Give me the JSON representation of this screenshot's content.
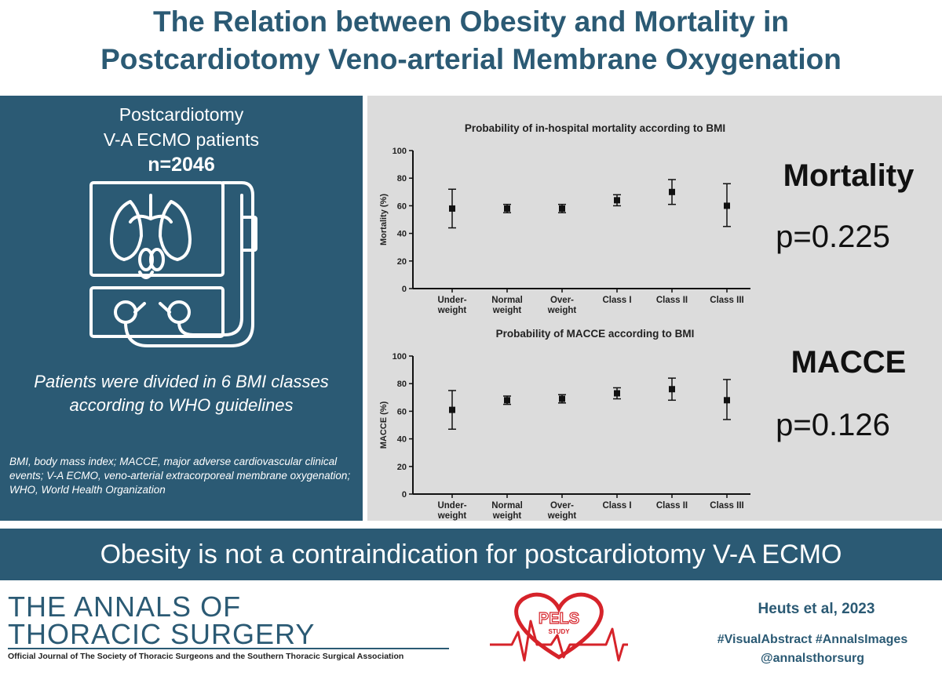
{
  "title": {
    "line1": "The Relation between Obesity and Mortality in",
    "line2": "Postcardiotomy Veno-arterial Membrane Oxygenation"
  },
  "left": {
    "line1": "Postcardiotomy",
    "line2": "V-A ECMO patients",
    "n": "n=2046",
    "divided": "Patients were divided in 6 BMI classes according to WHO guidelines",
    "abbrev": "BMI, body mass index; MACCE, major adverse cardiovascular clinical events; V-A ECMO, veno-arterial extracorporeal membrane oxygenation; WHO, World Health Organization"
  },
  "results": {
    "mortality_label": "Mortality",
    "mortality_p": "p=0.225",
    "macce_label": "MACCE",
    "macce_p": "p=0.126"
  },
  "banner": "Obesity is not a contraindication  for postcardiotomy  V-A ECMO",
  "footer": {
    "journal_line1": "THE ANNALS OF",
    "journal_line2": "THORACIC SURGERY",
    "journal_sub": "Official Journal of The Society of Thoracic Surgeons and the Southern Thoracic Surgical Association",
    "logo_text": "PELS",
    "logo_sub": "STUDY",
    "citation": "Heuts et al, 2023",
    "hashtags": "#VisualAbstract #AnnalsImages",
    "handle": "@annalsthorsurg"
  },
  "colors": {
    "brand": "#2b5a74",
    "panel": "#dcdcdc",
    "logo_red": "#d6232a"
  },
  "chart_data": [
    {
      "type": "scatter",
      "title": "Probability of in-hospital mortality according to BMI",
      "xlabel": "",
      "ylabel": "Mortality (%)",
      "ylim": [
        0,
        100
      ],
      "yticks": [
        "0",
        "20",
        "40",
        "60",
        "80",
        "100"
      ],
      "categories": [
        [
          "Under-",
          "weight"
        ],
        [
          "Normal",
          "weight"
        ],
        [
          "Over-",
          "weight"
        ],
        [
          "Class I"
        ],
        [
          "Class II"
        ],
        [
          "Class III"
        ]
      ],
      "values": [
        58,
        58,
        58,
        64,
        70,
        60
      ],
      "err_low": [
        44,
        55,
        55,
        60,
        61,
        45
      ],
      "err_high": [
        72,
        61,
        61,
        68,
        79,
        76
      ]
    },
    {
      "type": "scatter",
      "title": "Probability of MACCE according to BMI",
      "xlabel": "",
      "ylabel": "MACCE (%)",
      "ylim": [
        0,
        100
      ],
      "yticks": [
        "0",
        "20",
        "40",
        "60",
        "80",
        "100"
      ],
      "categories": [
        [
          "Under-",
          "weight"
        ],
        [
          "Normal",
          "weight"
        ],
        [
          "Over-",
          "weight"
        ],
        [
          "Class I"
        ],
        [
          "Class II"
        ],
        [
          "Class III"
        ]
      ],
      "values": [
        61,
        68,
        69,
        73,
        76,
        68
      ],
      "err_low": [
        47,
        65,
        66,
        69,
        68,
        54
      ],
      "err_high": [
        75,
        71,
        72,
        77,
        84,
        83
      ]
    }
  ]
}
